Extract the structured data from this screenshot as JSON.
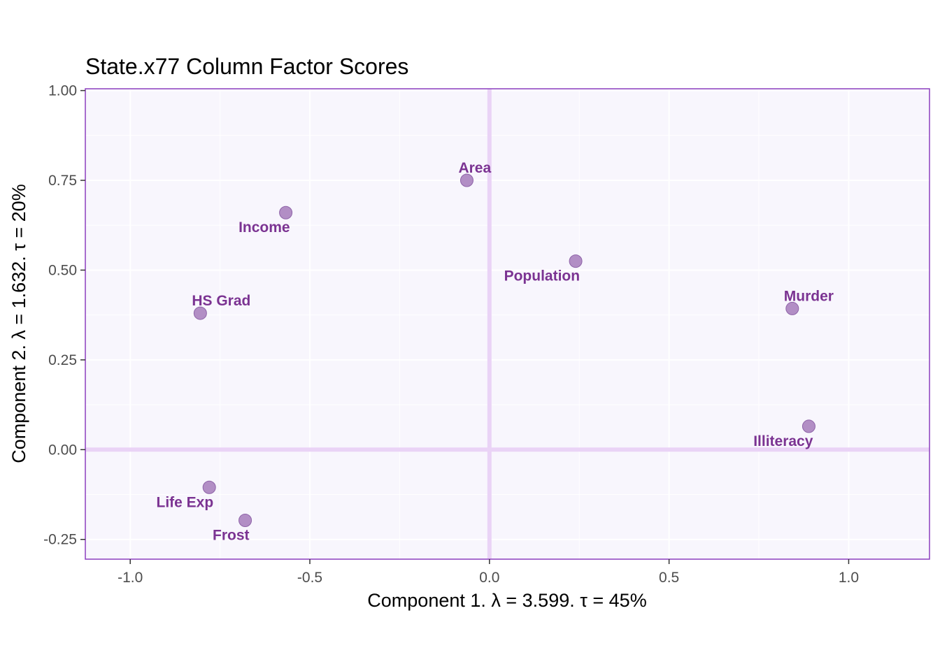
{
  "chart_data": {
    "type": "scatter",
    "title": "State.x77 Column Factor Scores",
    "xlabel": "Component 1.   λ = 3.599.  τ = 45%",
    "ylabel": "Component 2.   λ = 1.632.  τ = 20%",
    "xlim": [
      -1.125,
      1.225
    ],
    "ylim": [
      -0.305,
      1.005
    ],
    "x_ticks": [
      -1.0,
      -0.5,
      0.0,
      0.5,
      1.0
    ],
    "x_tick_labels": [
      "-1.0",
      "-0.5",
      "0.0",
      "0.5",
      "1.0"
    ],
    "y_ticks": [
      -0.25,
      0.0,
      0.25,
      0.5,
      0.75,
      1.0
    ],
    "y_tick_labels": [
      "-0.25",
      "0.00",
      "0.25",
      "0.50",
      "0.75",
      "1.00"
    ],
    "grid": true,
    "reference_lines": {
      "x": 0,
      "y": 0
    },
    "points": [
      {
        "label": "Population",
        "x": 0.24,
        "y": 0.525,
        "label_pos": "below-left"
      },
      {
        "label": "Income",
        "x": -0.567,
        "y": 0.66,
        "label_pos": "below-left"
      },
      {
        "label": "Illiteracy",
        "x": 0.889,
        "y": 0.065,
        "label_pos": "below-left"
      },
      {
        "label": "Life Exp",
        "x": -0.78,
        "y": -0.105,
        "label_pos": "below-left"
      },
      {
        "label": "Murder",
        "x": 0.843,
        "y": 0.393,
        "label_pos": "above-right"
      },
      {
        "label": "HS Grad",
        "x": -0.805,
        "y": 0.38,
        "label_pos": "above-right"
      },
      {
        "label": "Frost",
        "x": -0.68,
        "y": -0.197,
        "label_pos": "below-left"
      },
      {
        "label": "Area",
        "x": -0.063,
        "y": 0.75,
        "label_pos": "above-right"
      }
    ],
    "colors": {
      "panel_background": "#f8f6fd",
      "panel_border": "#8c3fbf",
      "grid": "#ffffff",
      "reference_line": "#ead3f6",
      "point_fill": "#b28ec5",
      "point_stroke": "#8e63a8",
      "label": "#7b3392"
    }
  }
}
